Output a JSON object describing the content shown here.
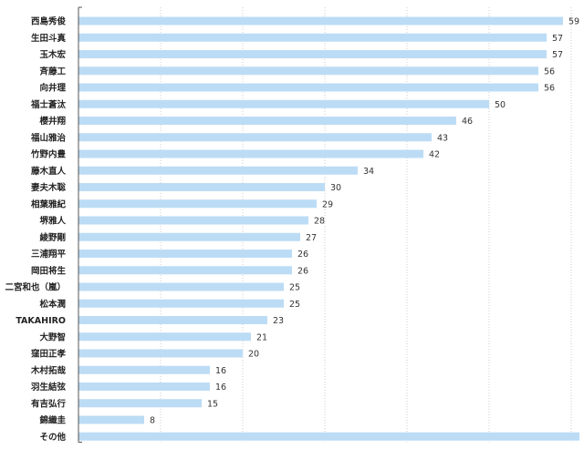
{
  "chart_data": {
    "type": "bar",
    "orientation": "horizontal",
    "categories": [
      "西島秀俊",
      "生田斗真",
      "玉木宏",
      "斉藤工",
      "向井理",
      "福士蒼汰",
      "櫻井翔",
      "福山雅治",
      "竹野内豊",
      "藤木直人",
      "妻夫木聡",
      "相葉雅紀",
      "堺雅人",
      "綾野剛",
      "三浦翔平",
      "岡田将生",
      "二宮和也（嵐）",
      "松本潤",
      "TAKAHIRO",
      "大野智",
      "窪田正孝",
      "木村拓哉",
      "羽生結弦",
      "有吉弘行",
      "錦織圭",
      "その他"
    ],
    "values": [
      59,
      57,
      57,
      56,
      56,
      50,
      46,
      43,
      42,
      34,
      30,
      29,
      28,
      27,
      26,
      26,
      25,
      25,
      23,
      21,
      20,
      16,
      16,
      15,
      8,
      61
    ],
    "title": "",
    "xlabel": "",
    "ylabel": "",
    "xlim": [
      0,
      63
    ],
    "grid": "vertical-dotted",
    "legend": "none",
    "colors": {
      "bar": "#bcdcf5",
      "axis": "#555555",
      "grid": "#cccccc",
      "label": "#222222"
    }
  }
}
